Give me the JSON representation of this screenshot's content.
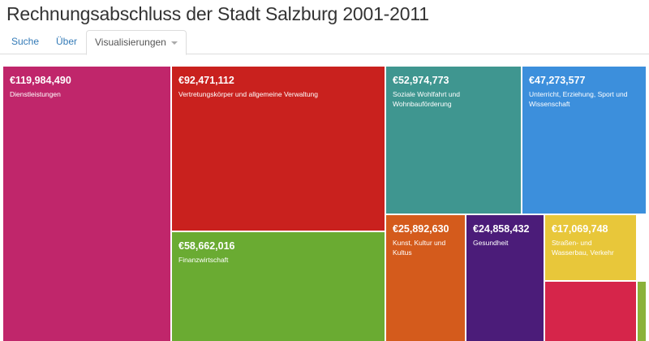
{
  "header": {
    "title": "Rechnungsabschluss der Stadt Salzburg 2001-2011"
  },
  "tabs": [
    {
      "label": "Suche"
    },
    {
      "label": "Über"
    },
    {
      "label": "Visualisierungen",
      "active": true,
      "dropdown": true,
      "icon": "chevron-down-icon"
    }
  ],
  "colors": {
    "tab_link": "#337ab7",
    "cells": [
      "#c0266b",
      "#c9211e",
      "#6aab32",
      "#3f9690",
      "#3c8fdc",
      "#d45b1c",
      "#4b1c79",
      "#e8c73a",
      "#d6254a",
      "#8bb23a"
    ]
  },
  "chart_data": {
    "type": "treemap",
    "title": "Rechnungsabschluss der Stadt Salzburg 2001-2011",
    "currency": "€",
    "items": [
      {
        "value_label": "€119,984,490",
        "value": 119984490,
        "label": "Dienstleistungen",
        "color": "#c0266b"
      },
      {
        "value_label": "€92,471,112",
        "value": 92471112,
        "label": "Vertretungskörper und allgemeine Verwaltung",
        "color": "#c9211e"
      },
      {
        "value_label": "€58,662,016",
        "value": 58662016,
        "label": "Finanzwirtschaft",
        "color": "#6aab32"
      },
      {
        "value_label": "€52,974,773",
        "value": 52974773,
        "label": "Soziale Wohlfahrt und Wohnbauförderung",
        "color": "#3f9690"
      },
      {
        "value_label": "€47,273,577",
        "value": 47273577,
        "label": "Unterricht, Erziehung, Sport und Wissenschaft",
        "color": "#3c8fdc"
      },
      {
        "value_label": "€25,892,630",
        "value": 25892630,
        "label": "Kunst, Kultur und Kultus",
        "color": "#d45b1c"
      },
      {
        "value_label": "€24,858,432",
        "value": 24858432,
        "label": "Gesundheit",
        "color": "#4b1c79"
      },
      {
        "value_label": "€17,069,748",
        "value": 17069748,
        "label": "Straßen- und Wasserbau, Verkehr",
        "color": "#e8c73a"
      },
      {
        "value_label": "",
        "label": "",
        "color": "#d6254a"
      },
      {
        "value_label": "",
        "label": "",
        "color": "#8bb23a"
      }
    ]
  }
}
